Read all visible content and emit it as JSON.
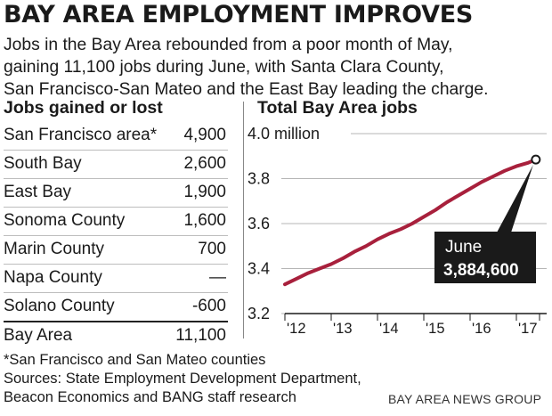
{
  "headline": "BAY AREA EMPLOYMENT IMPROVES",
  "dek": [
    "Jobs in the Bay Area rebounded from a poor month of May,",
    "gaining 11,100 jobs during June, with Santa Clara County,",
    "San Francisco-San Mateo and the East Bay leading the charge."
  ],
  "table": {
    "title": "Jobs gained or lost",
    "rows": [
      {
        "name": "San Francisco area*",
        "value": "4,900"
      },
      {
        "name": "South Bay",
        "value": "2,600"
      },
      {
        "name": "East Bay",
        "value": "1,900"
      },
      {
        "name": "Sonoma County",
        "value": "1,600"
      },
      {
        "name": "Marin County",
        "value": "700"
      },
      {
        "name": "Napa County",
        "value": "—"
      },
      {
        "name": "Solano County",
        "value": "-600"
      }
    ],
    "total": {
      "name": "Bay Area",
      "value": "11,100"
    }
  },
  "chart_data": {
    "type": "line",
    "title": "Total Bay Area jobs",
    "ylim": [
      3.2,
      4.0
    ],
    "yticks": [
      {
        "value": 4.0,
        "label": "4.0 million"
      },
      {
        "value": 3.8,
        "label": "3.8"
      },
      {
        "value": 3.6,
        "label": "3.6"
      },
      {
        "value": 3.4,
        "label": "3.4"
      },
      {
        "value": 3.2,
        "label": "3.2"
      }
    ],
    "xticks": [
      "'12",
      "'13",
      "'14",
      "'15",
      "'16",
      "'17"
    ],
    "xlim": [
      2012.0,
      2017.5
    ],
    "grid": true,
    "series_color": "#a8203c",
    "series": [
      {
        "x": [
          2012.0,
          2012.25,
          2012.5,
          2012.75,
          2013.0,
          2013.25,
          2013.5,
          2013.75,
          2014.0,
          2014.25,
          2014.5,
          2014.75,
          2015.0,
          2015.25,
          2015.5,
          2015.75,
          2016.0,
          2016.25,
          2016.5,
          2016.75,
          2017.0,
          2017.25,
          2017.42
        ],
        "y": [
          3.33,
          3.355,
          3.38,
          3.4,
          3.42,
          3.445,
          3.475,
          3.5,
          3.53,
          3.555,
          3.575,
          3.6,
          3.63,
          3.66,
          3.695,
          3.725,
          3.755,
          3.785,
          3.81,
          3.835,
          3.855,
          3.87,
          3.8846
        ]
      }
    ],
    "callout": {
      "month": "June",
      "value": "3,884,600",
      "x": 2017.42,
      "y": 3.8846
    }
  },
  "footnote": "*San Francisco and San Mateo counties",
  "sources": [
    "Sources: State Employment Development Department,",
    "Beacon Economics and BANG staff research"
  ],
  "credit": "BAY AREA NEWS GROUP"
}
